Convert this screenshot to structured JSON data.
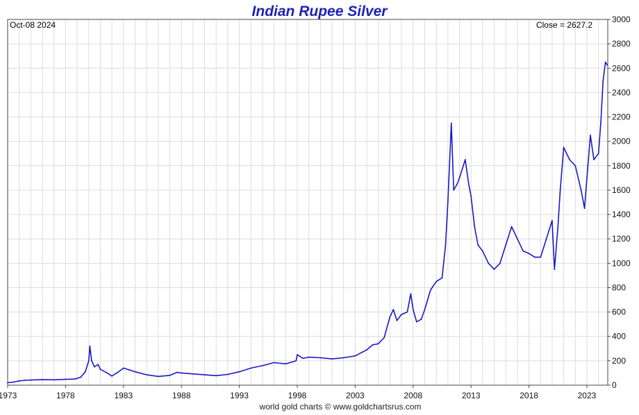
{
  "chart_data": {
    "type": "line",
    "title": "Indian Rupee Silver",
    "date_label": "Oct-08  2024",
    "close_label": "Close = 2627.2",
    "credit": "world gold charts © www.goldchartsrus.com",
    "xlabel": "",
    "ylabel": "",
    "xlim": [
      1973.0,
      2024.8
    ],
    "ylim": [
      0,
      3000
    ],
    "x_ticks": [
      1973,
      1978,
      1983,
      1988,
      1993,
      1998,
      2003,
      2008,
      2013,
      2018,
      2023
    ],
    "y_ticks": [
      0,
      200,
      400,
      600,
      800,
      1000,
      1200,
      1400,
      1600,
      1800,
      2000,
      2200,
      2400,
      2600,
      2800,
      3000
    ],
    "grid": true,
    "legend": "none",
    "line_color": "#1818c8",
    "series": [
      {
        "x": [
          1973.0,
          1973.5,
          1974.0,
          1974.5,
          1975.0,
          1976.0,
          1977.0,
          1978.0,
          1978.8,
          1979.3,
          1979.7,
          1980.0,
          1980.1,
          1980.25,
          1980.5,
          1980.8,
          1981.0,
          1981.5,
          1982.0,
          1982.5,
          1983.0,
          1983.5,
          1984.0,
          1985.0,
          1986.0,
          1987.0,
          1987.6,
          1988.0,
          1989.0,
          1990.0,
          1991.0,
          1992.0,
          1993.0,
          1994.0,
          1995.0,
          1996.0,
          1997.0,
          1997.9,
          1998.0,
          1998.5,
          1999.0,
          2000.0,
          2001.0,
          2002.0,
          2003.0,
          2004.0,
          2004.5,
          2005.0,
          2005.5,
          2006.0,
          2006.3,
          2006.6,
          2007.0,
          2007.5,
          2007.8,
          2008.0,
          2008.3,
          2008.7,
          2009.0,
          2009.5,
          2010.0,
          2010.5,
          2010.8,
          2011.0,
          2011.3,
          2011.5,
          2011.8,
          2012.0,
          2012.5,
          2012.8,
          2013.0,
          2013.3,
          2013.6,
          2014.0,
          2014.5,
          2015.0,
          2015.5,
          2016.0,
          2016.5,
          2017.0,
          2017.5,
          2018.0,
          2018.5,
          2019.0,
          2019.5,
          2020.0,
          2020.2,
          2020.5,
          2020.7,
          2021.0,
          2021.5,
          2022.0,
          2022.5,
          2022.8,
          2023.0,
          2023.3,
          2023.6,
          2024.0,
          2024.2,
          2024.4,
          2024.6,
          2024.75
        ],
        "y": [
          20,
          25,
          35,
          40,
          42,
          45,
          44,
          48,
          50,
          65,
          110,
          200,
          320,
          200,
          150,
          170,
          130,
          105,
          75,
          105,
          140,
          125,
          110,
          85,
          72,
          80,
          105,
          100,
          92,
          85,
          78,
          88,
          110,
          140,
          160,
          185,
          175,
          200,
          250,
          220,
          230,
          225,
          215,
          225,
          240,
          290,
          330,
          340,
          390,
          560,
          620,
          530,
          580,
          600,
          750,
          620,
          520,
          540,
          620,
          780,
          850,
          880,
          1150,
          1500,
          2150,
          1600,
          1650,
          1700,
          1850,
          1650,
          1550,
          1300,
          1150,
          1100,
          1000,
          950,
          1000,
          1150,
          1300,
          1200,
          1100,
          1080,
          1050,
          1050,
          1200,
          1350,
          950,
          1300,
          1600,
          1950,
          1850,
          1800,
          1600,
          1450,
          1700,
          2050,
          1850,
          1900,
          2150,
          2500,
          2650,
          2627.2
        ]
      }
    ]
  }
}
